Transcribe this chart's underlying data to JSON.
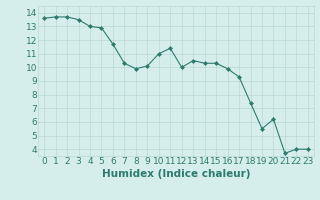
{
  "title": "",
  "xlabel": "Humidex (Indice chaleur)",
  "ylabel": "",
  "x": [
    0,
    1,
    2,
    3,
    4,
    5,
    6,
    7,
    8,
    9,
    10,
    11,
    12,
    13,
    14,
    15,
    16,
    17,
    18,
    19,
    20,
    21,
    22,
    23
  ],
  "y": [
    13.6,
    13.7,
    13.7,
    13.5,
    13.0,
    12.9,
    11.7,
    10.3,
    9.9,
    10.1,
    11.0,
    11.4,
    10.0,
    10.5,
    10.3,
    10.3,
    9.9,
    9.3,
    7.4,
    5.5,
    6.2,
    3.7,
    4.0,
    4.0
  ],
  "line_color": "#2e7b6e",
  "marker_color": "#2e7b6e",
  "bg_color": "#d6eeeb",
  "grid_color": "#b8d8d4",
  "xlim": [
    -0.5,
    23.5
  ],
  "ylim": [
    3.5,
    14.5
  ],
  "yticks": [
    4,
    5,
    6,
    7,
    8,
    9,
    10,
    11,
    12,
    13,
    14
  ],
  "xticks": [
    0,
    1,
    2,
    3,
    4,
    5,
    6,
    7,
    8,
    9,
    10,
    11,
    12,
    13,
    14,
    15,
    16,
    17,
    18,
    19,
    20,
    21,
    22,
    23
  ],
  "tick_label_fontsize": 6.5,
  "xlabel_fontsize": 7.5,
  "label_color": "#2e7b6e"
}
